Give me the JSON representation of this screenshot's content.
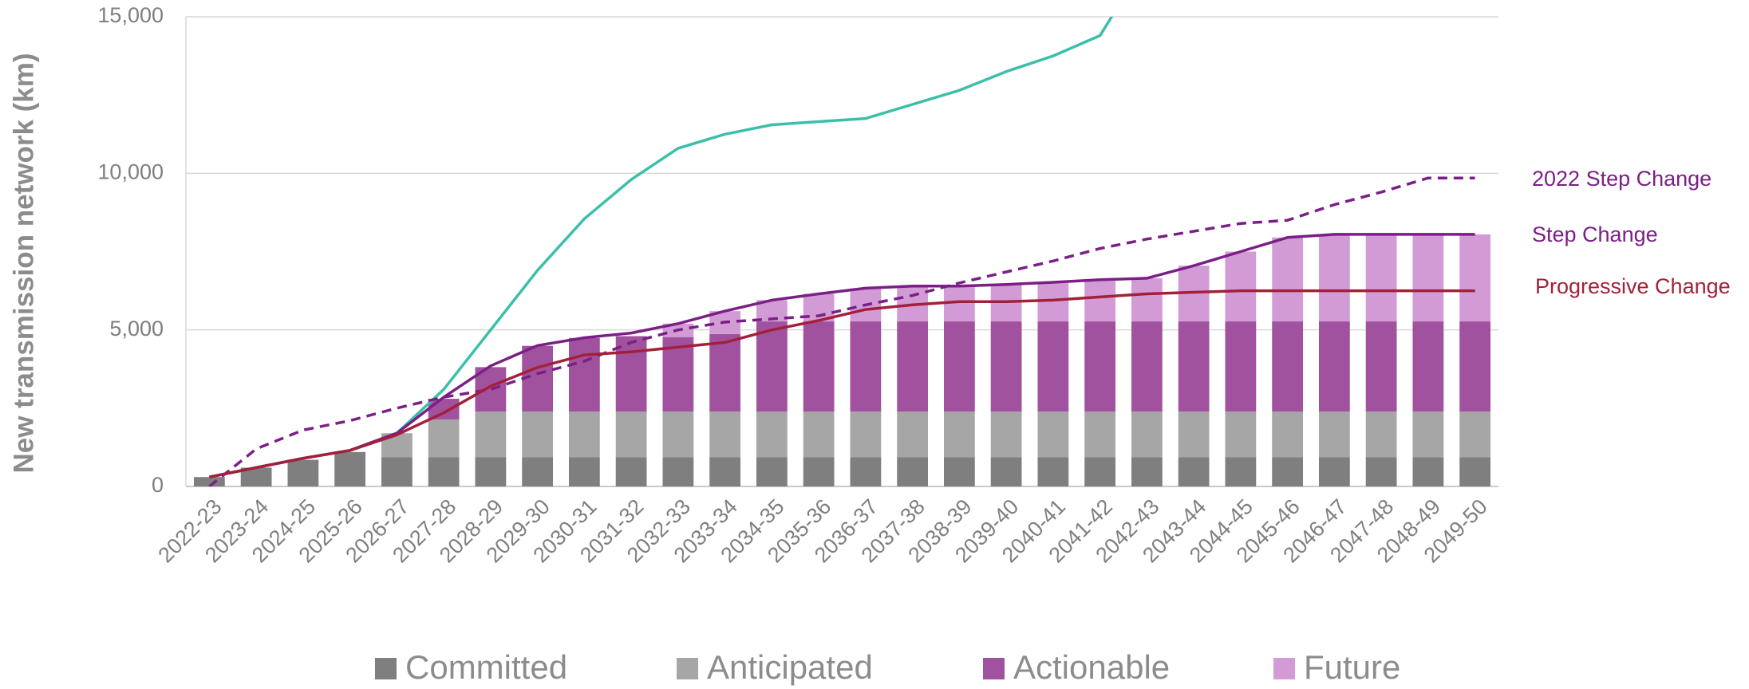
{
  "chart_data": {
    "type": "bar",
    "stacked": true,
    "y_label": "New transmission network (km)",
    "categories": [
      "2022-23",
      "2023-24",
      "2024-25",
      "2025-26",
      "2026-27",
      "2027-28",
      "2028-29",
      "2029-30",
      "2030-31",
      "2031-32",
      "2032-33",
      "2033-34",
      "2034-35",
      "2035-36",
      "2036-37",
      "2037-38",
      "2038-39",
      "2039-40",
      "2040-41",
      "2041-42",
      "2042-43",
      "2043-44",
      "2044-45",
      "2045-46",
      "2046-47",
      "2047-48",
      "2048-49",
      "2049-50"
    ],
    "ylim": [
      0,
      15000
    ],
    "yticks": [
      0,
      {
        "value": 5000,
        "label": "5,000"
      },
      {
        "value": 10000,
        "label": "10,000"
      },
      {
        "value": 15000,
        "label": "15,000"
      }
    ],
    "grid": true,
    "series": [
      {
        "name": "Committed",
        "type": "bar",
        "color": "#7f7f7f",
        "values": [
          300,
          600,
          850,
          1100,
          930,
          930,
          930,
          930,
          930,
          930,
          930,
          930,
          930,
          930,
          930,
          930,
          930,
          930,
          930,
          930,
          930,
          930,
          930,
          930,
          930,
          930,
          930,
          930
        ]
      },
      {
        "name": "Anticipated",
        "type": "bar",
        "color": "#a6a6a6",
        "values": [
          0,
          0,
          0,
          0,
          770,
          1210,
          1460,
          1460,
          1460,
          1460,
          1460,
          1460,
          1460,
          1460,
          1460,
          1460,
          1460,
          1460,
          1460,
          1460,
          1460,
          1460,
          1460,
          1460,
          1460,
          1460,
          1460,
          1460
        ]
      },
      {
        "name": "Actionable",
        "type": "bar",
        "color": "#a0529e",
        "values": [
          0,
          0,
          0,
          0,
          0,
          660,
          1420,
          2100,
          2350,
          2410,
          2380,
          2480,
          2880,
          2880,
          2880,
          2880,
          2880,
          2880,
          2880,
          2880,
          2880,
          2880,
          2880,
          2880,
          2880,
          2880,
          2880,
          2880
        ]
      },
      {
        "name": "Future",
        "type": "bar",
        "color": "#d39bd6",
        "values": [
          0,
          0,
          0,
          0,
          0,
          0,
          0,
          0,
          0,
          0,
          430,
          730,
          680,
          880,
          1060,
          1130,
          1130,
          1180,
          1230,
          1330,
          1380,
          1780,
          2230,
          2680,
          2780,
          2780,
          2780,
          2780
        ]
      },
      {
        "type": "line",
        "color": "#3cbfa8",
        "values": [
          300,
          600,
          900,
          1150,
          1700,
          3100,
          5000,
          6900,
          8550,
          9800,
          10800,
          11250,
          11550,
          11650,
          11750,
          12200,
          12650,
          13250,
          13750,
          14400,
          16800,
          null,
          null,
          null,
          null,
          null,
          null,
          null
        ]
      },
      {
        "name": "2022 Step Change",
        "type": "line",
        "dash": true,
        "color": "#7b1f86",
        "values": [
          0,
          1200,
          1800,
          2100,
          2500,
          2850,
          3100,
          3600,
          4000,
          4600,
          5000,
          5250,
          5350,
          5450,
          5800,
          6100,
          6500,
          6850,
          7200,
          7600,
          7900,
          8150,
          8400,
          8500,
          9000,
          9400,
          9850,
          9850
        ]
      },
      {
        "name": "Step Change",
        "type": "line",
        "color": "#7b1f86",
        "values": [
          300,
          600,
          900,
          1150,
          1700,
          2850,
          3850,
          4500,
          4750,
          4900,
          5200,
          5600,
          5950,
          6150,
          6330,
          6400,
          6400,
          6450,
          6520,
          6600,
          6650,
          7050,
          7500,
          7950,
          8050,
          8050,
          8050,
          8050
        ]
      },
      {
        "name": "Progressive Change",
        "type": "line",
        "color": "#a3203a",
        "values": [
          300,
          600,
          900,
          1150,
          1650,
          2350,
          3200,
          3800,
          4200,
          4300,
          4450,
          4600,
          5000,
          5300,
          5650,
          5800,
          5900,
          5900,
          5950,
          6050,
          6150,
          6200,
          6250,
          6250,
          6250,
          6250,
          6250,
          6250
        ]
      }
    ]
  }
}
